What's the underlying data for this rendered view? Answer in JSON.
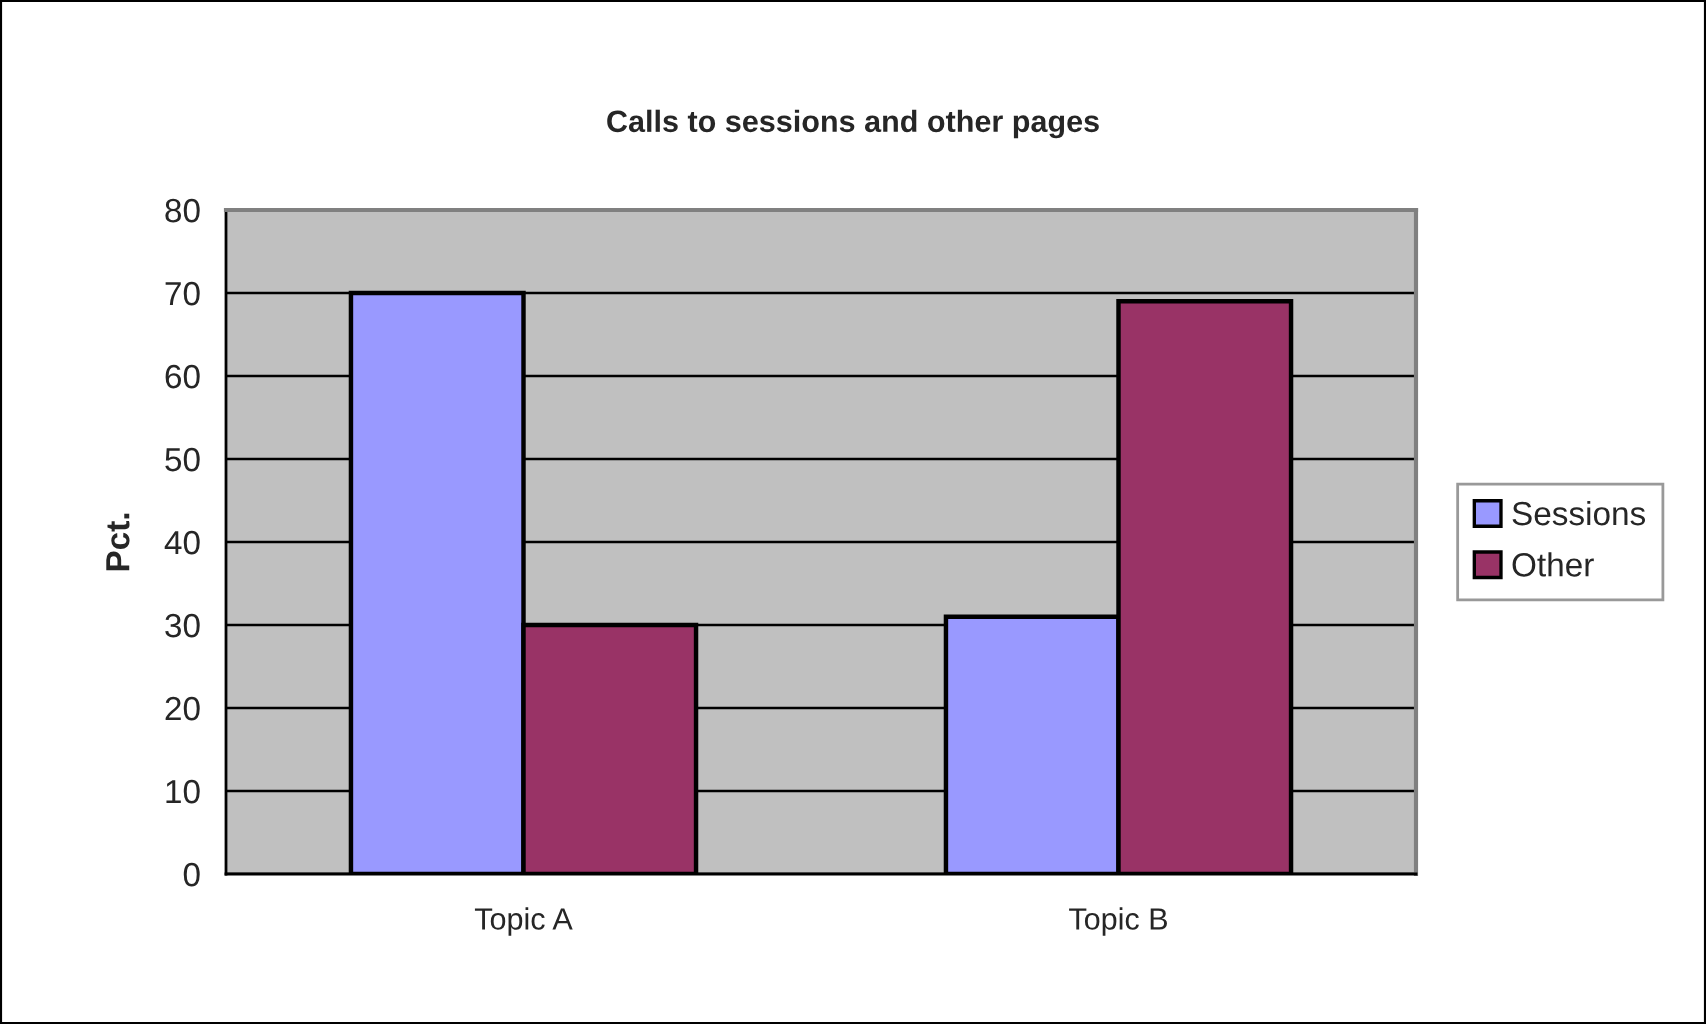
{
  "chart_data": {
    "type": "bar",
    "title": "Calls to sessions and other pages",
    "ylabel": "Pct.",
    "categories": [
      "Topic A",
      "Topic B"
    ],
    "series": [
      {
        "name": "Sessions",
        "color": "#9999ff",
        "values": [
          70,
          31
        ]
      },
      {
        "name": "Other",
        "color": "#993366",
        "values": [
          30,
          69
        ]
      }
    ],
    "ylim": [
      0,
      80
    ],
    "yticks": [
      0,
      10,
      20,
      30,
      40,
      50,
      60,
      70,
      80
    ],
    "grid": "y",
    "legend": "right"
  }
}
